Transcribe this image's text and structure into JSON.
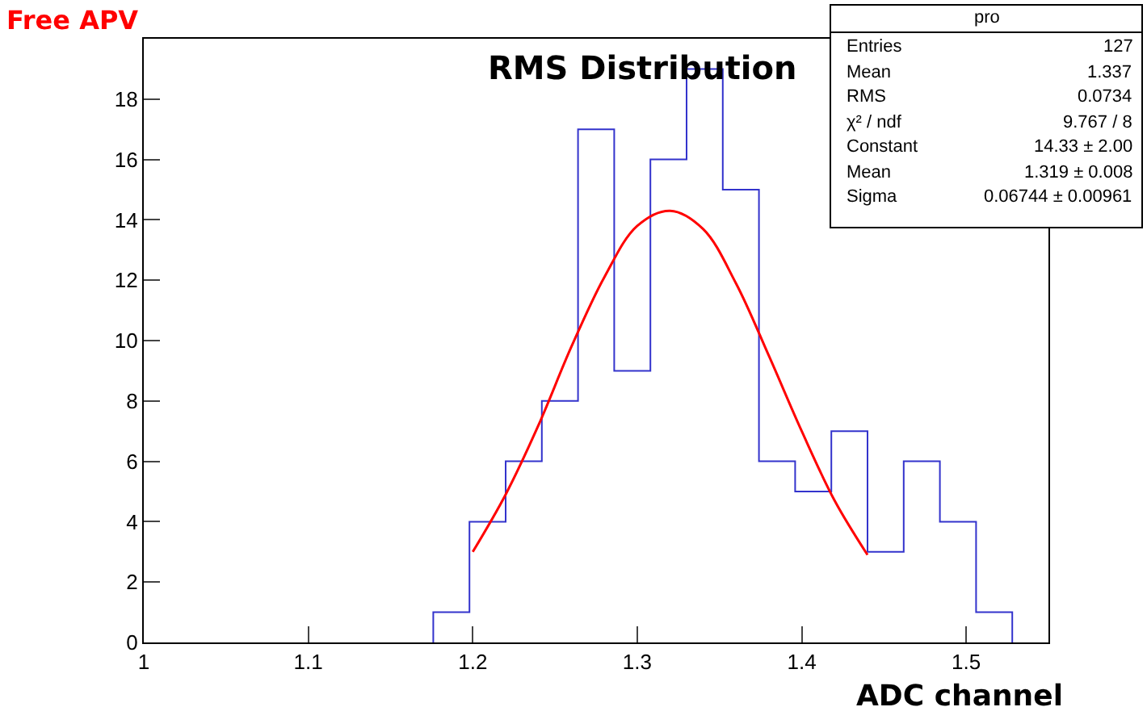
{
  "chart_data": {
    "type": "histogram",
    "title": "RMS Distribution",
    "xlabel": "ADC channel",
    "bins": [
      1.176,
      1.198,
      1.22,
      1.242,
      1.264,
      1.286,
      1.308,
      1.33,
      1.352,
      1.374,
      1.396,
      1.418,
      1.44,
      1.462,
      1.484,
      1.506,
      1.528
    ],
    "series": [
      {
        "color": "#3333cc",
        "values": [
          1,
          4,
          6,
          8,
          17,
          9,
          16,
          19,
          15,
          6,
          5,
          7,
          3,
          6,
          4,
          1
        ]
      },
      {
        "type": "line",
        "color": "#ff0000",
        "x": [
          1.2,
          1.22,
          1.24,
          1.26,
          1.28,
          1.3,
          1.32,
          1.34,
          1.36,
          1.38,
          1.4,
          1.42,
          1.44
        ],
        "values": [
          3.0,
          4.9,
          7.2,
          9.8,
          12.1,
          13.8,
          14.3,
          13.7,
          11.9,
          9.5,
          7.0,
          4.7,
          2.9
        ]
      }
    ],
    "xlim": [
      1,
      1.55
    ],
    "ylim": [
      0,
      20
    ],
    "xticks": [
      1,
      1.1,
      1.2,
      1.3,
      1.4,
      1.5
    ],
    "yticks": [
      0,
      2,
      4,
      6,
      8,
      10,
      12,
      14,
      16,
      18
    ],
    "annotations": [
      "Free APV",
      "pro",
      "Entries",
      "127",
      "Mean",
      "1.337",
      "RMS",
      "0.0734",
      "χ² / ndf",
      "9.767 / 8",
      "Constant",
      "14.33 ± 2.00",
      "Mean",
      "1.319 ± 0.008",
      "Sigma",
      "0.06744 ± 0.00961"
    ]
  }
}
